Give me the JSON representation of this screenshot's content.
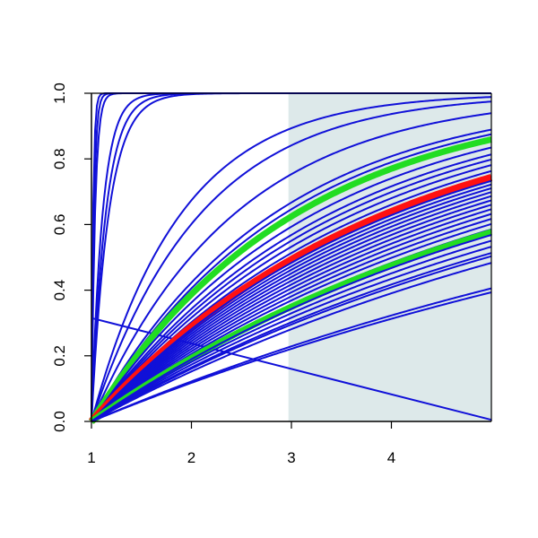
{
  "chart_data": {
    "type": "line",
    "title": "",
    "xlabel": "",
    "ylabel": "",
    "xlim": [
      1,
      5
    ],
    "ylim": [
      0,
      1
    ],
    "x_ticks": [
      1,
      2,
      3,
      4
    ],
    "y_ticks": [
      0.0,
      0.2,
      0.4,
      0.6,
      0.8,
      1.0
    ],
    "x_tick_labels": [
      "1",
      "2",
      "3",
      "4"
    ],
    "y_tick_labels": [
      "0.0",
      "0.2",
      "0.4",
      "0.6",
      "0.8",
      "1.0"
    ],
    "grid": false,
    "legend": "none",
    "shaded_region": {
      "x_from": 2.97,
      "x_to": 5,
      "color": "#dde9ea"
    },
    "colors": {
      "bundle": "#1010d8",
      "green": "#22dd22",
      "red": "#ff1111"
    },
    "series": [
      {
        "kind": "decay",
        "x": [
          1,
          5
        ],
        "y": [
          0.315,
          0.005
        ],
        "color": "#1010d8"
      },
      {
        "kind": "sat",
        "rate": 60,
        "color": "#1010d8"
      },
      {
        "kind": "sat",
        "rate": 40,
        "color": "#1010d8"
      },
      {
        "kind": "sat",
        "rate": 28,
        "color": "#1010d8"
      },
      {
        "kind": "sat",
        "rate": 9.0,
        "color": "#1010d8"
      },
      {
        "kind": "sat",
        "rate": 7.0,
        "color": "#1010d8"
      },
      {
        "kind": "sat",
        "rate": 5.8,
        "color": "#1010d8"
      },
      {
        "kind": "sat",
        "rate": 1.12,
        "color": "#1010d8"
      },
      {
        "kind": "sat",
        "rate": 0.92,
        "color": "#1010d8"
      },
      {
        "kind": "sat",
        "rate": 0.7,
        "color": "#1010d8"
      },
      {
        "kind": "sat",
        "rate": 0.55,
        "color": "#1010d8"
      },
      {
        "kind": "sat",
        "rate": 0.52,
        "color": "#1010d8"
      },
      {
        "kind": "sat",
        "rate": 0.49,
        "color": "#22dd22",
        "width": 7
      },
      {
        "kind": "sat",
        "rate": 0.45,
        "color": "#1010d8"
      },
      {
        "kind": "sat",
        "rate": 0.42,
        "color": "#1010d8"
      },
      {
        "kind": "sat",
        "rate": 0.4,
        "color": "#1010d8"
      },
      {
        "kind": "sat",
        "rate": 0.38,
        "color": "#1010d8"
      },
      {
        "kind": "sat",
        "rate": 0.36,
        "color": "#1010d8"
      },
      {
        "kind": "sat",
        "rate": 0.34,
        "color": "#ff1111",
        "width": 8
      },
      {
        "kind": "sat",
        "rate": 0.33,
        "color": "#1010d8"
      },
      {
        "kind": "sat",
        "rate": 0.32,
        "color": "#1010d8"
      },
      {
        "kind": "sat",
        "rate": 0.31,
        "color": "#1010d8"
      },
      {
        "kind": "sat",
        "rate": 0.3,
        "color": "#1010d8"
      },
      {
        "kind": "sat",
        "rate": 0.29,
        "color": "#1010d8"
      },
      {
        "kind": "sat",
        "rate": 0.28,
        "color": "#1010d8"
      },
      {
        "kind": "sat",
        "rate": 0.27,
        "color": "#1010d8"
      },
      {
        "kind": "sat",
        "rate": 0.26,
        "color": "#1010d8"
      },
      {
        "kind": "sat",
        "rate": 0.25,
        "color": "#1010d8"
      },
      {
        "kind": "sat",
        "rate": 0.24,
        "color": "#1010d8"
      },
      {
        "kind": "sat",
        "rate": 0.23,
        "color": "#1010d8"
      },
      {
        "kind": "sat",
        "rate": 0.22,
        "color": "#1010d8"
      },
      {
        "kind": "sat",
        "rate": 0.215,
        "color": "#22dd22",
        "width": 7
      },
      {
        "kind": "sat",
        "rate": 0.21,
        "color": "#1010d8"
      },
      {
        "kind": "sat",
        "rate": 0.2,
        "color": "#1010d8"
      },
      {
        "kind": "sat",
        "rate": 0.19,
        "color": "#1010d8"
      },
      {
        "kind": "sat",
        "rate": 0.18,
        "color": "#1010d8"
      },
      {
        "kind": "sat",
        "rate": 0.175,
        "color": "#1010d8"
      },
      {
        "kind": "sat",
        "rate": 0.165,
        "color": "#1010d8"
      },
      {
        "kind": "sat",
        "rate": 0.13,
        "color": "#1010d8"
      },
      {
        "kind": "sat",
        "rate": 0.125,
        "color": "#1010d8"
      }
    ]
  }
}
